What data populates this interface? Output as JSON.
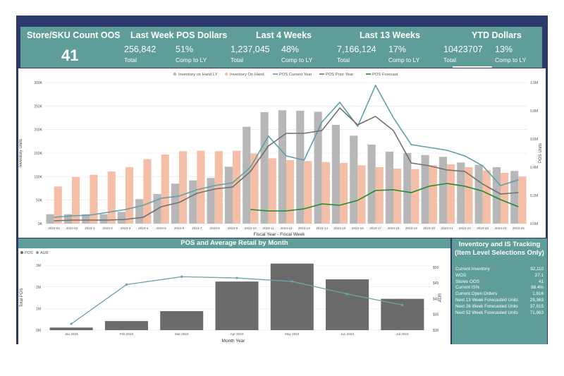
{
  "kpis": {
    "oos": {
      "title": "Store/SKU Count OOS",
      "value": "41"
    },
    "last_week": {
      "title": "Last Week POS Dollars",
      "total": "256,842",
      "total_label": "Total",
      "comp": "51%",
      "comp_label": "Comp to LY"
    },
    "last4": {
      "title": "Last 4 Weeks",
      "total": "1,237,045",
      "total_label": "Total",
      "comp": "48%",
      "comp_label": "Comp to LY"
    },
    "last13": {
      "title": "Last 13 Weeks",
      "total": "7,166,124",
      "total_label": "Total",
      "comp": "17%",
      "comp_label": "Comp to LY"
    },
    "ytd": {
      "title": "YTD Dollars",
      "total": "10423707",
      "total_label": "Total",
      "comp": "13%",
      "comp_label": "Comp to LY"
    }
  },
  "inventory_panel": {
    "title": "Inventory and IS Tracking\n(Item Level Selections Only)",
    "rows": [
      {
        "label": "Current Inventory",
        "value": "92,110"
      },
      {
        "label": "WOS",
        "value": "27.1"
      },
      {
        "label": "Stores OOS",
        "value": "41"
      },
      {
        "label": "Current IS%",
        "value": "98.4%"
      },
      {
        "label": "Current Open Orders",
        "value": "1,816"
      },
      {
        "label": "Next 13 Week Forecasted Units",
        "value": "29,363"
      },
      {
        "label": "Next 26 Week Forecasted Units",
        "value": "37,815"
      },
      {
        "label": "Next 52 Week Forecasted Units",
        "value": "71,963"
      }
    ]
  },
  "colors": {
    "teal": "#5f9e98",
    "gray_bar": "#b7b7b7",
    "salmon_bar": "#f5bfa7",
    "pos_cy": "#5f9fa9",
    "pos_py": "#707070",
    "forecast": "#1f8a2a",
    "pos_bar": "#6b6b6b",
    "aur_line": "#6aa6aa"
  },
  "chart_data": [
    {
      "type": "bar",
      "title": "",
      "xlabel": "Fiscal Year - Fiscal Week",
      "ylabel": "Inventory Units",
      "y2label": "POS Units",
      "ylim": [
        0,
        300000
      ],
      "y2lim": [
        0,
        1000000
      ],
      "y_ticks": [
        "0K",
        "50K",
        "100K",
        "150K",
        "200K",
        "250K",
        "300K"
      ],
      "y2_ticks": [
        "0.0M",
        "0.2M",
        "0.4M",
        "0.6M",
        "0.8M",
        "1.0M"
      ],
      "categories": [
        "2022-51",
        "2022-52",
        "2023-1",
        "2023-2",
        "2023-3",
        "2023-4",
        "2023-5",
        "2023-6",
        "2023-7",
        "2023-8",
        "2023-9",
        "2023-10",
        "2023-11",
        "2023-12",
        "2023-13",
        "2023-14",
        "2023-15",
        "2023-16",
        "2023-17",
        "2023-18",
        "2023-19",
        "2023-20",
        "2023-21",
        "2023-22",
        "2023-23",
        "2023-24",
        "2023-25"
      ],
      "series": [
        {
          "name": "Inventory on Hand LY",
          "kind": "bar",
          "axis": "left",
          "values": [
            20000,
            20000,
            20000,
            20000,
            25000,
            52000,
            63000,
            85000,
            92000,
            97000,
            121000,
            206000,
            237000,
            241000,
            240000,
            238000,
            210000,
            187000,
            168000,
            153000,
            150000,
            146000,
            142000,
            130000,
            125000,
            120000,
            112000
          ]
        },
        {
          "name": "Inventory On Hand",
          "kind": "bar",
          "axis": "left",
          "values": [
            79000,
            99000,
            104000,
            111000,
            120000,
            137000,
            147000,
            154000,
            155000,
            154000,
            155000,
            149000,
            139000,
            135000,
            133000,
            131000,
            129000,
            124000,
            120000,
            117000,
            116000,
            124000,
            126000,
            120000,
            113000,
            108000,
            100000
          ]
        },
        {
          "name": "POS Current Year",
          "kind": "line",
          "axis": "right",
          "values": [
            45000,
            55000,
            60000,
            80000,
            100000,
            130000,
            180000,
            195000,
            240000,
            270000,
            290000,
            400000,
            620000,
            480000,
            450000,
            720000,
            860000,
            690000,
            980000,
            750000,
            560000,
            540000,
            520000,
            480000,
            410000,
            270000,
            310000
          ]
        },
        {
          "name": "POS Prior Year",
          "kind": "line",
          "axis": "right",
          "values": [
            20000,
            25000,
            25000,
            25000,
            30000,
            45000,
            120000,
            150000,
            215000,
            245000,
            260000,
            370000,
            550000,
            640000,
            640000,
            660000,
            820000,
            700000,
            760000,
            660000,
            430000,
            410000,
            380000,
            370000,
            280000,
            210000,
            220000
          ]
        },
        {
          "name": "POS Forecast",
          "kind": "line",
          "axis": "right",
          "start_index": 11,
          "values": [
            null,
            null,
            null,
            null,
            null,
            null,
            null,
            null,
            null,
            null,
            null,
            100000,
            90000,
            90000,
            105000,
            140000,
            130000,
            165000,
            235000,
            240000,
            220000,
            265000,
            285000,
            265000,
            230000,
            170000,
            120000
          ]
        }
      ]
    },
    {
      "type": "bar",
      "title": "POS and Average Retail by Month",
      "xlabel": "Month Year",
      "ylabel": "Total POS",
      "y2label": "AUR",
      "ylim": [
        0,
        3200000
      ],
      "y2lim": [
        30,
        52
      ],
      "y_ticks": [
        "0M",
        "1M",
        "2M",
        "3M"
      ],
      "y2_ticks": [
        "$30",
        "$35",
        "$40",
        "$45",
        "$50"
      ],
      "categories": [
        "Jan 2023",
        "Feb 2023",
        "Mar 2023",
        "Apr 2023",
        "May 2023",
        "Jun 2023",
        "Jul 2023"
      ],
      "series": [
        {
          "name": "POS",
          "kind": "bar",
          "axis": "left",
          "values": [
            120000,
            420000,
            880000,
            2250000,
            3080000,
            2350000,
            1450000
          ]
        },
        {
          "name": "AUR",
          "kind": "line",
          "axis": "right",
          "values": [
            32.0,
            44.5,
            47.0,
            46.6,
            45.5,
            41.5,
            38.0
          ]
        }
      ]
    }
  ],
  "top_legend_order": [
    "Inventory on Hand LY",
    "Inventory On Hand",
    "POS Current Year",
    "POS Prior Year",
    "POS Forecast"
  ],
  "bottom_legend": [
    "POS",
    "AUR"
  ]
}
